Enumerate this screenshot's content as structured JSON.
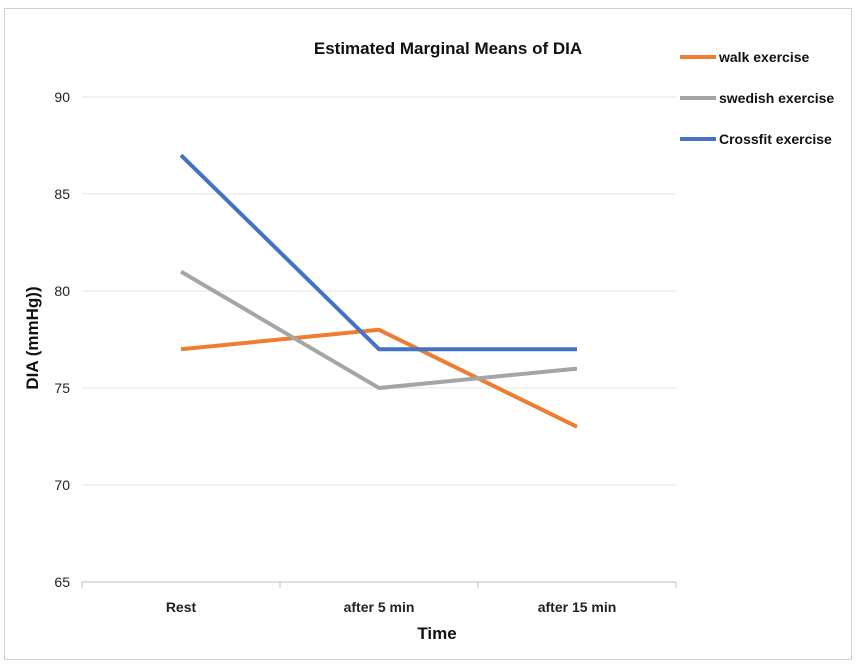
{
  "chart_data": {
    "type": "line",
    "title": "Estimated Marginal Means of DIA",
    "xlabel": "Time",
    "ylabel": "DIA (mmHg))",
    "categories": [
      "Rest",
      "after  5 min",
      "after 15 min"
    ],
    "ylim": [
      65,
      90
    ],
    "yticks": [
      65,
      70,
      75,
      80,
      85,
      90
    ],
    "grid": true,
    "legend_position": "top-right",
    "series": [
      {
        "name": "walk exercise",
        "color": "#ED7D31",
        "values": [
          77,
          78,
          73
        ]
      },
      {
        "name": "swedish exercise",
        "color": "#A5A5A5",
        "values": [
          81,
          75,
          76
        ]
      },
      {
        "name": "Crossfit exercise",
        "color": "#4472C4",
        "values": [
          87,
          77,
          77
        ]
      }
    ]
  }
}
